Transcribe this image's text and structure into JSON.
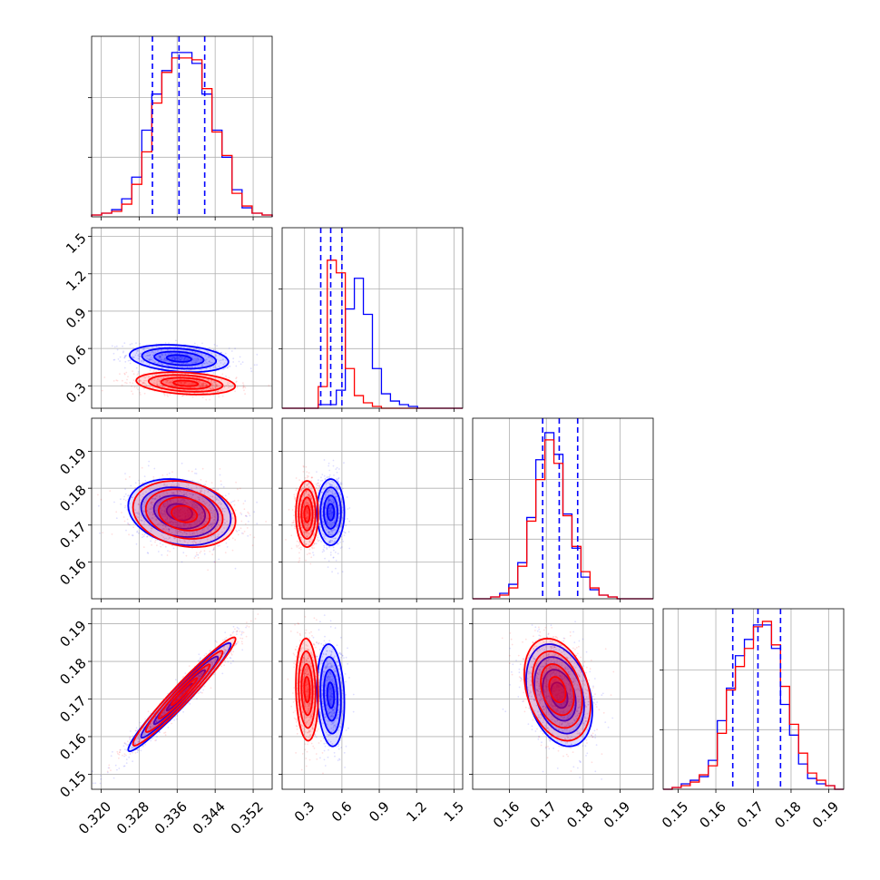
{
  "chart_data": {
    "type": "corner",
    "grid": true,
    "series": [
      {
        "color": "#0000ff"
      },
      {
        "color": "#ff0000"
      }
    ],
    "parameters": [
      {
        "range": [
          0.318,
          0.356
        ],
        "ticks": [
          "0.320",
          "0.328",
          "0.336",
          "0.344",
          "0.352"
        ],
        "tick_values": [
          0.32,
          0.328,
          0.336,
          0.344,
          0.352
        ],
        "quantiles": [
          0.3308,
          0.3364,
          0.3418
        ]
      },
      {
        "range": [
          0.12,
          1.57
        ],
        "ticks": [
          "0.3",
          "0.6",
          "0.9",
          "1.2",
          "1.5"
        ],
        "tick_values": [
          0.3,
          0.6,
          0.9,
          1.2,
          1.5
        ],
        "quantiles": [
          0.43,
          0.51,
          0.6
        ]
      },
      {
        "range": [
          0.15,
          0.199
        ],
        "ticks": [
          "0.16",
          "0.17",
          "0.18",
          "0.19"
        ],
        "tick_values": [
          0.16,
          0.17,
          0.18,
          0.19
        ],
        "quantiles": [
          0.169,
          0.1735,
          0.1785
        ]
      },
      {
        "range": [
          0.146,
          0.194
        ],
        "ticks": [
          "0.15",
          "0.16",
          "0.17",
          "0.18",
          "0.19"
        ],
        "tick_values": [
          0.15,
          0.16,
          0.17,
          0.18,
          0.19
        ],
        "quantiles": [
          0.1645,
          0.1712,
          0.1772
        ]
      }
    ],
    "diagonal_hists": [
      {
        "blue": [
          0.01,
          0.02,
          0.04,
          0.1,
          0.22,
          0.48,
          0.68,
          0.81,
          0.91,
          0.91,
          0.85,
          0.68,
          0.48,
          0.33,
          0.15,
          0.05,
          0.02,
          0.01
        ],
        "red": [
          0.01,
          0.02,
          0.03,
          0.07,
          0.18,
          0.36,
          0.63,
          0.8,
          0.88,
          0.88,
          0.87,
          0.71,
          0.47,
          0.34,
          0.13,
          0.06,
          0.02,
          0.01
        ]
      },
      {
        "blue": [
          0.0,
          0.0,
          0.0,
          0.0,
          0.02,
          0.02,
          0.1,
          0.55,
          0.72,
          0.52,
          0.22,
          0.08,
          0.04,
          0.02,
          0.01,
          0.0,
          0.0,
          0.0,
          0.0,
          0.0
        ],
        "red": [
          0.0,
          0.0,
          0.0,
          0.0,
          0.12,
          0.82,
          0.75,
          0.22,
          0.07,
          0.03,
          0.01,
          0.0,
          0.0,
          0.0,
          0.0,
          0.0,
          0.0,
          0.0,
          0.0,
          0.0
        ]
      },
      {
        "blue": [
          0.0,
          0.0,
          0.01,
          0.03,
          0.08,
          0.2,
          0.45,
          0.77,
          0.92,
          0.8,
          0.47,
          0.28,
          0.12,
          0.05,
          0.02,
          0.01,
          0.0,
          0.0,
          0.0,
          0.0
        ],
        "red": [
          0.0,
          0.0,
          0.01,
          0.02,
          0.06,
          0.18,
          0.43,
          0.66,
          0.88,
          0.75,
          0.46,
          0.29,
          0.15,
          0.06,
          0.02,
          0.01,
          0.0,
          0.0,
          0.0,
          0.0
        ]
      },
      {
        "blue": [
          0.0,
          0.01,
          0.03,
          0.05,
          0.07,
          0.16,
          0.38,
          0.56,
          0.74,
          0.83,
          0.91,
          0.91,
          0.78,
          0.47,
          0.3,
          0.14,
          0.06,
          0.03,
          0.02,
          0.0
        ],
        "red": [
          0.0,
          0.01,
          0.02,
          0.04,
          0.08,
          0.13,
          0.31,
          0.55,
          0.68,
          0.78,
          0.9,
          0.93,
          0.8,
          0.57,
          0.36,
          0.2,
          0.09,
          0.05,
          0.02,
          0.0
        ]
      }
    ],
    "contour_panels": [
      {
        "row": 1,
        "col": 0,
        "blue": {
          "center": [
            0.3364,
            0.52
          ],
          "sd": [
            0.0052,
            0.055
          ],
          "rho": -0.25
        },
        "red": {
          "center": [
            0.3378,
            0.32
          ],
          "sd": [
            0.0052,
            0.045
          ],
          "rho": -0.25
        }
      },
      {
        "row": 2,
        "col": 0,
        "blue": {
          "center": [
            0.3365,
            0.1735
          ],
          "sd": [
            0.0054,
            0.0045
          ],
          "rho": -0.2
        },
        "red": {
          "center": [
            0.3375,
            0.173
          ],
          "sd": [
            0.0054,
            0.0045
          ],
          "rho": -0.2
        }
      },
      {
        "row": 2,
        "col": 1,
        "blue": {
          "center": [
            0.51,
            0.1735
          ],
          "sd": [
            0.055,
            0.0045
          ],
          "rho": 0.0
        },
        "red": {
          "center": [
            0.32,
            0.173
          ],
          "sd": [
            0.045,
            0.0045
          ],
          "rho": 0.0
        }
      },
      {
        "row": 3,
        "col": 0,
        "blue": {
          "center": [
            0.3365,
            0.1705
          ],
          "sd": [
            0.0054,
            0.0072
          ],
          "rho": 0.97
        },
        "red": {
          "center": [
            0.3375,
            0.172
          ],
          "sd": [
            0.0054,
            0.0072
          ],
          "rho": 0.97
        }
      },
      {
        "row": 3,
        "col": 1,
        "blue": {
          "center": [
            0.51,
            0.171
          ],
          "sd": [
            0.055,
            0.0068
          ],
          "rho": -0.15
        },
        "red": {
          "center": [
            0.32,
            0.1725
          ],
          "sd": [
            0.045,
            0.0068
          ],
          "rho": -0.1
        }
      },
      {
        "row": 3,
        "col": 2,
        "blue": {
          "center": [
            0.1735,
            0.171
          ],
          "sd": [
            0.0045,
            0.0068
          ],
          "rho": -0.3
        },
        "red": {
          "center": [
            0.173,
            0.1725
          ],
          "sd": [
            0.0045,
            0.0068
          ],
          "rho": -0.3
        }
      }
    ]
  }
}
